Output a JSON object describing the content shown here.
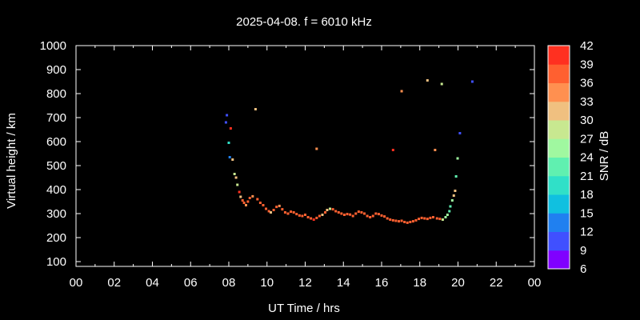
{
  "chart_data": {
    "type": "scatter",
    "title": "2025-04-08. f = 6010 kHz",
    "xlabel": "UT Time / hrs",
    "ylabel": "Virtual height / km",
    "colorbar_label": "SNR / dB",
    "xlim": [
      0,
      24
    ],
    "ylim": [
      80,
      1000
    ],
    "xticks": [
      "00",
      "02",
      "04",
      "06",
      "08",
      "10",
      "12",
      "14",
      "16",
      "18",
      "20",
      "22",
      "00"
    ],
    "yticks": [
      100,
      200,
      300,
      400,
      500,
      600,
      700,
      800,
      900,
      1000
    ],
    "colorbar_range": [
      6,
      42
    ],
    "colorbar_ticks": [
      6,
      9,
      12,
      15,
      18,
      21,
      24,
      27,
      30,
      33,
      36,
      39,
      42
    ],
    "colorbar_colors": [
      "#8000ff",
      "#4050ff",
      "#2080f0",
      "#10c0e0",
      "#30e0c8",
      "#60f0b0",
      "#a0f8a0",
      "#c8e890",
      "#f0c080",
      "#ff9050",
      "#ff6030",
      "#ff3020"
    ],
    "grid": false,
    "points": [
      {
        "x": 7.85,
        "y": 680,
        "snr": 10
      },
      {
        "x": 7.9,
        "y": 710,
        "snr": 11
      },
      {
        "x": 8.0,
        "y": 595,
        "snr": 20
      },
      {
        "x": 8.05,
        "y": 535,
        "snr": 12
      },
      {
        "x": 8.1,
        "y": 655,
        "snr": 40
      },
      {
        "x": 8.2,
        "y": 525,
        "snr": 31
      },
      {
        "x": 8.3,
        "y": 465,
        "snr": 29
      },
      {
        "x": 8.38,
        "y": 450,
        "snr": 31
      },
      {
        "x": 8.45,
        "y": 420,
        "snr": 28
      },
      {
        "x": 8.55,
        "y": 390,
        "snr": 40
      },
      {
        "x": 8.62,
        "y": 370,
        "snr": 31
      },
      {
        "x": 8.72,
        "y": 355,
        "snr": 38
      },
      {
        "x": 8.8,
        "y": 345,
        "snr": 37
      },
      {
        "x": 8.9,
        "y": 335,
        "snr": 33
      },
      {
        "x": 9.0,
        "y": 350,
        "snr": 37
      },
      {
        "x": 9.1,
        "y": 365,
        "snr": 36
      },
      {
        "x": 9.25,
        "y": 372,
        "snr": 35
      },
      {
        "x": 9.4,
        "y": 735,
        "snr": 32
      },
      {
        "x": 9.5,
        "y": 360,
        "snr": 36
      },
      {
        "x": 9.65,
        "y": 345,
        "snr": 36
      },
      {
        "x": 9.8,
        "y": 335,
        "snr": 37
      },
      {
        "x": 9.95,
        "y": 320,
        "snr": 36
      },
      {
        "x": 10.1,
        "y": 310,
        "snr": 38
      },
      {
        "x": 10.2,
        "y": 305,
        "snr": 31
      },
      {
        "x": 10.35,
        "y": 315,
        "snr": 36
      },
      {
        "x": 10.5,
        "y": 328,
        "snr": 36
      },
      {
        "x": 10.65,
        "y": 332,
        "snr": 33
      },
      {
        "x": 10.8,
        "y": 318,
        "snr": 37
      },
      {
        "x": 10.95,
        "y": 305,
        "snr": 38
      },
      {
        "x": 11.1,
        "y": 300,
        "snr": 37
      },
      {
        "x": 11.25,
        "y": 308,
        "snr": 38
      },
      {
        "x": 11.4,
        "y": 305,
        "snr": 37
      },
      {
        "x": 11.55,
        "y": 298,
        "snr": 38
      },
      {
        "x": 11.7,
        "y": 292,
        "snr": 37
      },
      {
        "x": 11.85,
        "y": 290,
        "snr": 38
      },
      {
        "x": 12.0,
        "y": 295,
        "snr": 37
      },
      {
        "x": 12.15,
        "y": 285,
        "snr": 36
      },
      {
        "x": 12.3,
        "y": 280,
        "snr": 38
      },
      {
        "x": 12.45,
        "y": 275,
        "snr": 39
      },
      {
        "x": 12.6,
        "y": 282,
        "snr": 36
      },
      {
        "x": 12.6,
        "y": 570,
        "snr": 33
      },
      {
        "x": 12.75,
        "y": 290,
        "snr": 38
      },
      {
        "x": 12.9,
        "y": 295,
        "snr": 32
      },
      {
        "x": 13.05,
        "y": 305,
        "snr": 38
      },
      {
        "x": 13.15,
        "y": 315,
        "snr": 32
      },
      {
        "x": 13.3,
        "y": 320,
        "snr": 28
      },
      {
        "x": 13.45,
        "y": 318,
        "snr": 38
      },
      {
        "x": 13.6,
        "y": 310,
        "snr": 37
      },
      {
        "x": 13.75,
        "y": 305,
        "snr": 38
      },
      {
        "x": 13.9,
        "y": 300,
        "snr": 36
      },
      {
        "x": 14.05,
        "y": 295,
        "snr": 37
      },
      {
        "x": 14.2,
        "y": 298,
        "snr": 38
      },
      {
        "x": 14.35,
        "y": 296,
        "snr": 37
      },
      {
        "x": 14.5,
        "y": 290,
        "snr": 36
      },
      {
        "x": 14.65,
        "y": 300,
        "snr": 38
      },
      {
        "x": 14.8,
        "y": 308,
        "snr": 37
      },
      {
        "x": 14.95,
        "y": 305,
        "snr": 38
      },
      {
        "x": 15.1,
        "y": 300,
        "snr": 37
      },
      {
        "x": 15.25,
        "y": 290,
        "snr": 36
      },
      {
        "x": 15.4,
        "y": 285,
        "snr": 38
      },
      {
        "x": 15.55,
        "y": 290,
        "snr": 37
      },
      {
        "x": 15.7,
        "y": 300,
        "snr": 36
      },
      {
        "x": 15.85,
        "y": 298,
        "snr": 38
      },
      {
        "x": 16.0,
        "y": 292,
        "snr": 37
      },
      {
        "x": 16.15,
        "y": 288,
        "snr": 38
      },
      {
        "x": 16.3,
        "y": 280,
        "snr": 37
      },
      {
        "x": 16.45,
        "y": 275,
        "snr": 38
      },
      {
        "x": 16.6,
        "y": 272,
        "snr": 37
      },
      {
        "x": 16.6,
        "y": 565,
        "snr": 40
      },
      {
        "x": 16.75,
        "y": 270,
        "snr": 38
      },
      {
        "x": 16.9,
        "y": 268,
        "snr": 37
      },
      {
        "x": 17.05,
        "y": 270,
        "snr": 38
      },
      {
        "x": 17.05,
        "y": 810,
        "snr": 34
      },
      {
        "x": 17.2,
        "y": 265,
        "snr": 37
      },
      {
        "x": 17.35,
        "y": 262,
        "snr": 38
      },
      {
        "x": 17.5,
        "y": 265,
        "snr": 37
      },
      {
        "x": 17.65,
        "y": 268,
        "snr": 38
      },
      {
        "x": 17.8,
        "y": 272,
        "snr": 37
      },
      {
        "x": 17.95,
        "y": 278,
        "snr": 36
      },
      {
        "x": 18.1,
        "y": 282,
        "snr": 38
      },
      {
        "x": 18.25,
        "y": 280,
        "snr": 37
      },
      {
        "x": 18.4,
        "y": 278,
        "snr": 38
      },
      {
        "x": 18.4,
        "y": 855,
        "snr": 32
      },
      {
        "x": 18.55,
        "y": 282,
        "snr": 37
      },
      {
        "x": 18.7,
        "y": 285,
        "snr": 36
      },
      {
        "x": 18.8,
        "y": 565,
        "snr": 34
      },
      {
        "x": 18.9,
        "y": 280,
        "snr": 38
      },
      {
        "x": 19.05,
        "y": 278,
        "snr": 36
      },
      {
        "x": 19.15,
        "y": 840,
        "snr": 29
      },
      {
        "x": 19.2,
        "y": 275,
        "snr": 27
      },
      {
        "x": 19.35,
        "y": 285,
        "snr": 25
      },
      {
        "x": 19.45,
        "y": 295,
        "snr": 24
      },
      {
        "x": 19.55,
        "y": 310,
        "snr": 23
      },
      {
        "x": 19.6,
        "y": 330,
        "snr": 22
      },
      {
        "x": 19.7,
        "y": 355,
        "snr": 26
      },
      {
        "x": 19.78,
        "y": 375,
        "snr": 30
      },
      {
        "x": 19.85,
        "y": 395,
        "snr": 32
      },
      {
        "x": 19.9,
        "y": 455,
        "snr": 21
      },
      {
        "x": 19.98,
        "y": 530,
        "snr": 24
      },
      {
        "x": 20.1,
        "y": 635,
        "snr": 11
      },
      {
        "x": 20.75,
        "y": 850,
        "snr": 11
      }
    ]
  }
}
